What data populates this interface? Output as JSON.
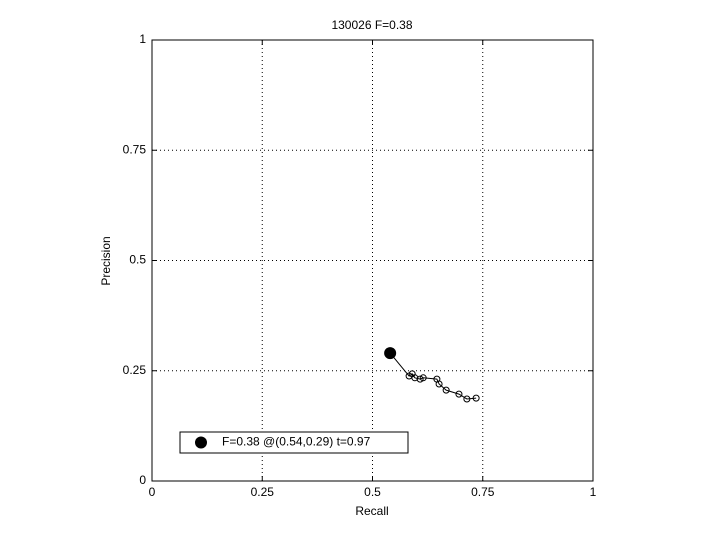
{
  "chart_data": {
    "type": "line",
    "title": "130026 F=0.38",
    "xlabel": "Recall",
    "ylabel": "Precision",
    "xlim": [
      0,
      1
    ],
    "ylim": [
      0,
      1
    ],
    "xticks": [
      0,
      0.25,
      0.5,
      0.75,
      1
    ],
    "yticks": [
      0,
      0.25,
      0.5,
      0.75,
      1
    ],
    "grid": true,
    "legend": "lower left",
    "series": [
      {
        "color": "#000000",
        "marker": "circle",
        "x": [
          0.54,
          0.583,
          0.59,
          0.596,
          0.608,
          0.615,
          0.646,
          0.651,
          0.667,
          0.696,
          0.714,
          0.735
        ],
        "values": [
          0.29,
          0.238,
          0.243,
          0.234,
          0.231,
          0.234,
          0.231,
          0.22,
          0.206,
          0.197,
          0.186,
          0.188
        ]
      },
      {
        "name": "F=0.38 @(0.54,0.29) t=0.97",
        "color": "#000000",
        "marker": "dot",
        "x": [
          0.54
        ],
        "values": [
          0.29
        ]
      }
    ]
  }
}
